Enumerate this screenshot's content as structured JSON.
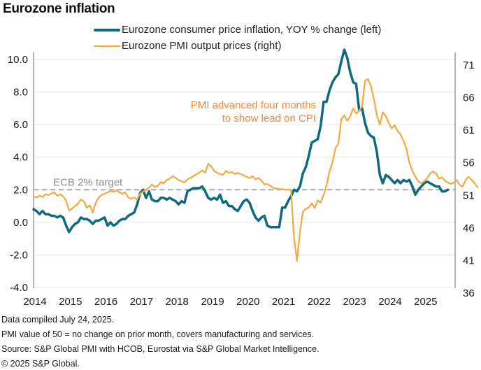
{
  "chart_data": {
    "type": "line",
    "title": "Eurozone inflation",
    "xlabel": "",
    "x_start": "2014-01",
    "x_ticks": [
      "2014",
      "2015",
      "2016",
      "2017",
      "2018",
      "2019",
      "2020",
      "2021",
      "2022",
      "2023",
      "2024",
      "2025"
    ],
    "left_axis": {
      "label": "",
      "ylim": [
        -4,
        10
      ],
      "ticks": [
        "10.0",
        "8.0",
        "6.0",
        "4.0",
        "2.0",
        "0.0",
        "-2.0",
        "-4.0"
      ],
      "tick_values": [
        10,
        8,
        6,
        4,
        2,
        0,
        -2,
        -4
      ]
    },
    "right_axis": {
      "label": "",
      "ylim": [
        36,
        71
      ],
      "ticks": [
        "71",
        "66",
        "61",
        "56",
        "51",
        "46",
        "41",
        "36"
      ],
      "tick_values": [
        71,
        66,
        61,
        56,
        51,
        46,
        41,
        36
      ]
    },
    "grid": true,
    "legend_position": "top-center",
    "reference_line": {
      "value": 2.0,
      "axis": "left",
      "label": "ECB 2% target",
      "style": "dashed",
      "color": "#a6a6a6"
    },
    "annotation": {
      "lines": [
        "PMI advanced four months",
        "to show lead on CPI"
      ],
      "color": "#f0883a"
    },
    "series": [
      {
        "name": "Eurozone consumer price inflation, YOY % change (left)",
        "axis": "left",
        "color": "#0f6a80",
        "start": "2014-01",
        "values": [
          0.8,
          0.7,
          0.5,
          0.7,
          0.5,
          0.5,
          0.4,
          0.4,
          0.3,
          0.4,
          0.3,
          -0.2,
          -0.6,
          -0.3,
          -0.1,
          0.0,
          0.3,
          0.2,
          0.2,
          0.1,
          -0.1,
          0.1,
          0.1,
          0.2,
          0.3,
          -0.2,
          0.0,
          -0.2,
          -0.1,
          0.1,
          0.2,
          0.2,
          0.4,
          0.5,
          0.6,
          1.1,
          1.8,
          2.0,
          1.5,
          1.9,
          1.4,
          1.3,
          1.3,
          1.5,
          1.5,
          1.4,
          1.5,
          1.4,
          1.3,
          1.1,
          1.3,
          1.2,
          1.9,
          2.0,
          2.1,
          2.1,
          2.1,
          2.2,
          1.9,
          1.5,
          1.4,
          1.5,
          1.4,
          1.7,
          1.2,
          1.3,
          1.0,
          1.0,
          0.8,
          0.7,
          1.0,
          1.3,
          1.4,
          1.2,
          0.7,
          0.3,
          0.1,
          0.3,
          0.4,
          -0.2,
          -0.3,
          -0.3,
          -0.3,
          -0.3,
          0.9,
          0.9,
          1.3,
          1.6,
          2.0,
          1.9,
          2.2,
          3.0,
          3.4,
          4.1,
          4.9,
          5.0,
          5.1,
          5.9,
          7.4,
          7.4,
          8.1,
          8.6,
          8.9,
          9.1,
          9.9,
          10.6,
          10.1,
          9.2,
          8.6,
          8.5,
          6.9,
          7.0,
          6.1,
          5.5,
          5.3,
          5.2,
          4.3,
          2.9,
          2.4,
          2.9,
          2.8,
          2.6,
          2.4,
          2.6,
          2.4,
          2.6,
          2.5,
          2.6,
          2.2,
          1.7,
          2.0,
          2.2,
          2.4,
          2.5,
          2.4,
          2.3,
          2.2,
          2.2,
          1.9,
          1.9,
          2.0
        ]
      },
      {
        "name": "Eurozone PMI output prices (right)",
        "axis": "right",
        "color": "#f5a742",
        "start": "2014-01",
        "values": [
          50.0,
          49.8,
          50.1,
          49.9,
          50.3,
          50.2,
          50.4,
          50.6,
          50.1,
          50.3,
          50.0,
          49.3,
          47.8,
          48.1,
          48.5,
          48.9,
          49.5,
          49.2,
          48.2,
          48.6,
          47.5,
          49.0,
          49.8,
          50.2,
          50.4,
          50.6,
          50.8,
          50.7,
          50.9,
          50.6,
          50.4,
          50.6,
          49.8,
          49.6,
          49.8,
          49.5,
          50.4,
          50.7,
          51.0,
          51.3,
          51.8,
          51.4,
          51.6,
          52.2,
          52.0,
          52.5,
          52.7,
          53.1,
          52.8,
          52.5,
          52.3,
          52.1,
          52.6,
          52.8,
          53.1,
          53.4,
          53.6,
          54.0,
          53.6,
          55.0,
          54.6,
          53.9,
          53.6,
          53.4,
          53.3,
          53.9,
          53.6,
          53.7,
          53.4,
          53.6,
          53.4,
          53.2,
          53.0,
          52.8,
          53.1,
          52.6,
          52.8,
          52.4,
          51.8,
          51.9,
          51.6,
          51.3,
          51.2,
          51.1,
          51.1,
          51.0,
          51.0,
          51.0,
          43.6,
          40.1,
          44.5,
          47.6,
          48.1,
          48.3,
          48.9,
          48.2,
          49.4,
          49.0,
          50.2,
          51.7,
          53.8,
          55.2,
          57.4,
          58.1,
          61.9,
          62.4,
          61.6,
          62.3,
          63.5,
          62.7,
          63.1,
          63.8,
          67.7,
          68.0,
          66.9,
          64.9,
          62.4,
          61.0,
          62.9,
          62.3,
          61.3,
          60.4,
          60.9,
          60.0,
          59.5,
          58.5,
          57.3,
          55.1,
          53.9,
          53.0,
          52.3,
          52.0,
          52.3,
          52.8,
          53.5,
          53.8,
          53.5,
          52.7,
          52.9,
          52.4,
          52.1,
          51.9,
          52.1,
          52.5,
          51.7,
          51.5,
          52.5,
          53.0,
          52.5,
          52.0,
          51.4
        ]
      }
    ]
  },
  "legend": {
    "cpi_label": "Eurozone consumer price inflation, YOY % change (left)",
    "pmi_label": "Eurozone PMI output prices (right)"
  },
  "footnotes": [
    "Data compiled July 24, 2025.",
    "PMI value of 50 = no change on prior month, covers manufacturing and services.",
    "Source: S&P Global PMI with HCOB, Eurostat via S&P Global Market Intelligence.",
    "© 2025 S&P Global."
  ]
}
